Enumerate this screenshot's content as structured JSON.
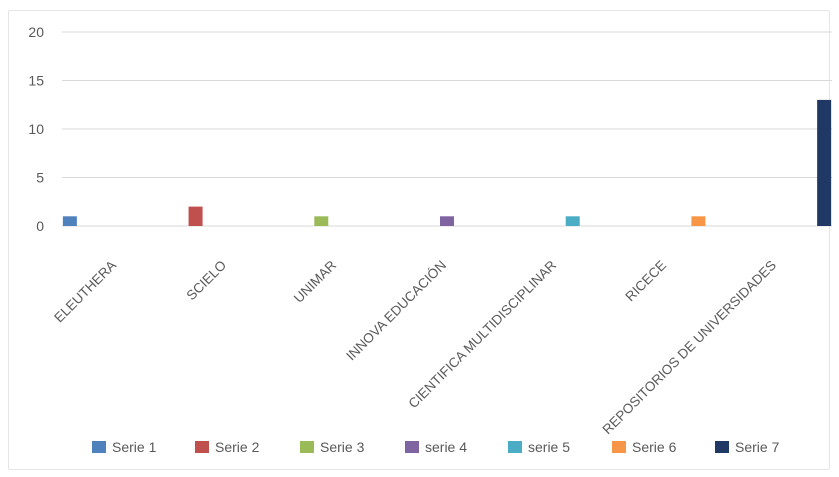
{
  "chart_data": {
    "type": "bar",
    "categories": [
      "ELEUTHERA",
      "SCIELO",
      "UNIMAR",
      "INNOVA EDUCACIÓN",
      "CIENTIFICA MULTIDISCIPLINAR",
      "RICECE",
      "REPOSITORIOS DE UNIVERSIDADES"
    ],
    "series": [
      {
        "name": "Serie 1",
        "color": "#4f81bd",
        "values": [
          1,
          0,
          0,
          0,
          0,
          0,
          0
        ]
      },
      {
        "name": "Serie 2",
        "color": "#c0504d",
        "values": [
          0,
          2,
          0,
          0,
          0,
          0,
          0
        ]
      },
      {
        "name": "Serie 3",
        "color": "#9bbb59",
        "values": [
          0,
          0,
          1,
          0,
          0,
          0,
          0
        ]
      },
      {
        "name": "serie 4",
        "color": "#8064a2",
        "values": [
          0,
          0,
          0,
          1,
          0,
          0,
          0
        ]
      },
      {
        "name": "serie 5",
        "color": "#4bacc6",
        "values": [
          0,
          0,
          0,
          0,
          1,
          0,
          0
        ]
      },
      {
        "name": "Serie 6",
        "color": "#f79646",
        "values": [
          0,
          0,
          0,
          0,
          0,
          1,
          0
        ]
      },
      {
        "name": "Serie 7",
        "color": "#1f3864",
        "values": [
          0,
          0,
          0,
          0,
          0,
          0,
          13
        ]
      }
    ],
    "yticks": [
      "0",
      "5",
      "10",
      "15",
      "20"
    ],
    "ylim": [
      0,
      20
    ],
    "grid": true,
    "legend_position": "bottom"
  }
}
